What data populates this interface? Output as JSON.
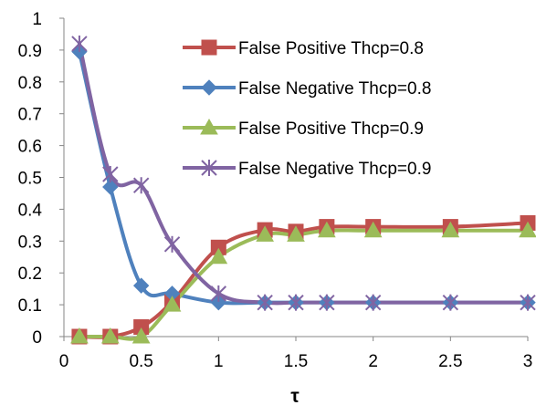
{
  "chart_data": {
    "type": "line",
    "title": "",
    "xlabel": "τ",
    "ylabel": "",
    "xlim": [
      0,
      3
    ],
    "ylim": [
      0,
      1
    ],
    "x_ticks": [
      "0",
      "0.5",
      "1",
      "1.5",
      "2",
      "2.5",
      "3"
    ],
    "y_ticks": [
      "0",
      "0.1",
      "0.2",
      "0.3",
      "0.4",
      "0.5",
      "0.6",
      "0.7",
      "0.8",
      "0.9",
      "1"
    ],
    "grid": false,
    "legend_position": "top-right",
    "series": [
      {
        "name": "False Positive Thcp=0.8",
        "color": "#C0504D",
        "marker": "square",
        "x": [
          0.1,
          0.3,
          0.5,
          0.7,
          1.0,
          1.3,
          1.5,
          1.7,
          2.0,
          2.5,
          3.0
        ],
        "y": [
          0.0,
          0.0,
          0.03,
          0.11,
          0.28,
          0.335,
          0.33,
          0.345,
          0.345,
          0.345,
          0.357
        ]
      },
      {
        "name": "False Negative Thcp=0.8",
        "color": "#4F81BD",
        "marker": "diamond",
        "x": [
          0.1,
          0.3,
          0.5,
          0.7,
          1.0,
          1.3,
          1.5,
          1.7,
          2.0,
          2.5,
          3.0
        ],
        "y": [
          0.895,
          0.47,
          0.16,
          0.135,
          0.107,
          0.107,
          0.107,
          0.107,
          0.107,
          0.107,
          0.107
        ]
      },
      {
        "name": "False Positive Thcp=0.9",
        "color": "#9BBB59",
        "marker": "triangle",
        "x": [
          0.1,
          0.3,
          0.5,
          0.7,
          1.0,
          1.3,
          1.5,
          1.7,
          2.0,
          2.5,
          3.0
        ],
        "y": [
          0.0,
          0.0,
          0.0,
          0.1,
          0.25,
          0.32,
          0.32,
          0.333,
          0.333,
          0.333,
          0.333
        ]
      },
      {
        "name": "False Negative Thcp=0.9",
        "color": "#8064A2",
        "marker": "star",
        "x": [
          0.1,
          0.3,
          0.5,
          0.7,
          1.0,
          1.3,
          1.5,
          1.7,
          2.0,
          2.5,
          3.0
        ],
        "y": [
          0.92,
          0.51,
          0.475,
          0.29,
          0.135,
          0.107,
          0.107,
          0.107,
          0.107,
          0.107,
          0.107
        ]
      }
    ]
  }
}
